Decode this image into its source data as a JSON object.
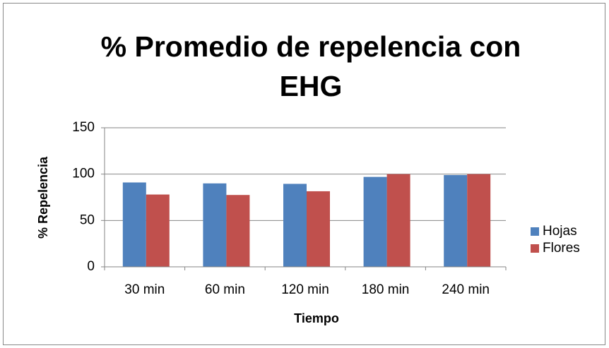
{
  "chart_data": {
    "type": "bar",
    "title": "% Promedio de repelencia con EHG",
    "x_label": "Tiempo",
    "y_label": "% Repelencia",
    "categories": [
      "30 min",
      "60 min",
      "120 min",
      "180 min",
      "240 min"
    ],
    "series": [
      {
        "name": "Hojas",
        "color": "#4f81bd",
        "values": [
          91,
          90,
          89.5,
          97,
          99
        ]
      },
      {
        "name": "Flores",
        "color": "#c0504d",
        "values": [
          78,
          77.5,
          81.5,
          100,
          100
        ]
      }
    ],
    "ylim": [
      0,
      150
    ],
    "yticks": [
      0,
      50,
      100,
      150
    ],
    "grid": true,
    "legend": "right"
  }
}
